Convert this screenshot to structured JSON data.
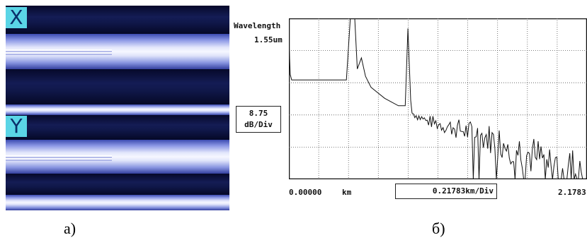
{
  "panel_a": {
    "badge_x": "X",
    "badge_y": "Y",
    "caption": "а)"
  },
  "panel_b": {
    "wavelength_label": "Wavelength",
    "wavelength_value": "1.55um",
    "vertical_scale_value": "8.75",
    "vertical_scale_unit": "dB/Div",
    "x_start": "0.00000",
    "x_unit": "km",
    "x_scale": "0.21783km/Div",
    "x_end": "2.1783",
    "caption": "б)"
  },
  "chart_data": {
    "type": "line",
    "title": "",
    "xlabel": "km",
    "ylabel": "dB",
    "xlim": [
      0,
      2.1783
    ],
    "x_scale_per_div": 0.21783,
    "y_scale_per_div": 8.75,
    "grid": true,
    "grid_divisions": {
      "x": 10,
      "y": 5
    },
    "series": [
      {
        "x": [
          0.0,
          0.01,
          0.02,
          0.4,
          0.42,
          0.45,
          0.48,
          0.5,
          0.53,
          0.56,
          0.6,
          0.7,
          0.8,
          0.85,
          0.87,
          0.89,
          0.9,
          1.0,
          1.2,
          1.4,
          1.6,
          1.8,
          2.0,
          2.1783
        ],
        "y": [
          38.0,
          28.5,
          27.0,
          27.0,
          27.0,
          44.5,
          44.5,
          30.0,
          33.0,
          28.0,
          25.0,
          22.0,
          20.0,
          20.0,
          41.0,
          21.5,
          18.0,
          16.0,
          14.0,
          12.0,
          9.5,
          6.0,
          3.0,
          0.5
        ]
      }
    ]
  }
}
